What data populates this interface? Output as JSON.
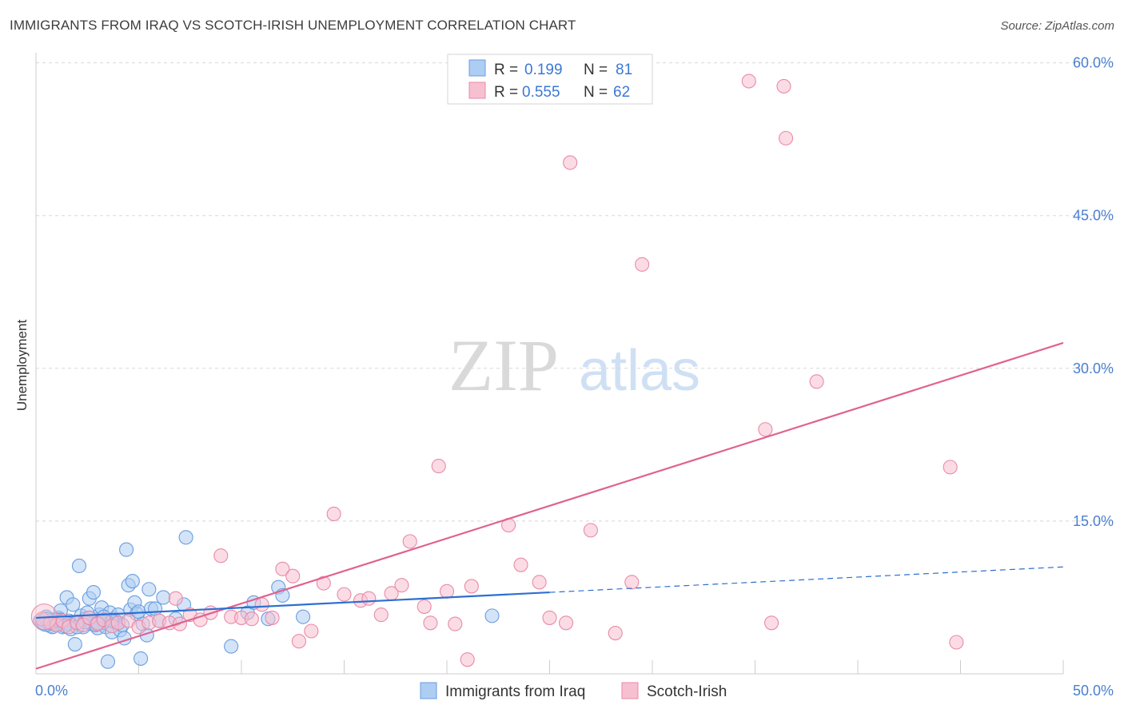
{
  "title": "IMMIGRANTS FROM IRAQ VS SCOTCH-IRISH UNEMPLOYMENT CORRELATION CHART",
  "source": "Source: ZipAtlas.com",
  "watermark": {
    "zip": "ZIP",
    "atlas": "atlas"
  },
  "colors": {
    "blue_fill": "#aecdf3",
    "blue_stroke": "#6a9de0",
    "blue_line": "#2e6fd0",
    "pink_fill": "#f7c0d0",
    "pink_stroke": "#e98aa8",
    "pink_line": "#e0628f",
    "grid": "#d8d8d8",
    "tick_text": "#4a7fd0"
  },
  "stats": [
    {
      "r_label": "R =",
      "r_value": "0.199",
      "n_label": "N =",
      "n_value": "81"
    },
    {
      "r_label": "R =",
      "r_value": "0.555",
      "n_label": "N =",
      "n_value": "62"
    }
  ],
  "chart_data": {
    "type": "scatter",
    "title": "IMMIGRANTS FROM IRAQ VS SCOTCH-IRISH UNEMPLOYMENT CORRELATION CHART",
    "xlabel": "",
    "ylabel": "Unemployment",
    "xlim": [
      0,
      50
    ],
    "ylim": [
      0,
      62
    ],
    "x_tick_labels": [
      "0.0%",
      "50.0%"
    ],
    "y_ticks": [
      15,
      30,
      45,
      60
    ],
    "y_tick_labels": [
      "15.0%",
      "30.0%",
      "45.0%",
      "60.0%"
    ],
    "grid": true,
    "legend_position": "bottom-center",
    "series": [
      {
        "name": "Immigrants from Iraq",
        "color": "blue",
        "r": 0.199,
        "n": 81,
        "trend": {
          "x": [
            0,
            25
          ],
          "y": [
            5.5,
            8.0
          ],
          "dashed_to": [
            50,
            10.5
          ]
        },
        "points": [
          [
            0.2,
            5.2
          ],
          [
            0.4,
            4.9
          ],
          [
            0.5,
            5.6
          ],
          [
            0.6,
            5.0
          ],
          [
            0.7,
            4.7
          ],
          [
            0.8,
            5.3
          ],
          [
            0.9,
            5.1
          ],
          [
            1.0,
            4.8
          ],
          [
            1.1,
            5.5
          ],
          [
            1.2,
            6.2
          ],
          [
            1.3,
            4.6
          ],
          [
            1.4,
            5.0
          ],
          [
            1.5,
            7.5
          ],
          [
            1.6,
            5.2
          ],
          [
            1.7,
            4.4
          ],
          [
            1.8,
            6.8
          ],
          [
            1.9,
            2.9
          ],
          [
            2.0,
            5.1
          ],
          [
            2.1,
            10.6
          ],
          [
            2.2,
            5.7
          ],
          [
            2.3,
            4.6
          ],
          [
            2.4,
            5.4
          ],
          [
            2.5,
            6.0
          ],
          [
            2.6,
            7.4
          ],
          [
            2.7,
            4.9
          ],
          [
            2.8,
            8.0
          ],
          [
            2.9,
            5.3
          ],
          [
            3.0,
            4.5
          ],
          [
            3.1,
            5.8
          ],
          [
            3.2,
            6.5
          ],
          [
            3.3,
            5.0
          ],
          [
            3.4,
            4.6
          ],
          [
            3.5,
            1.2
          ],
          [
            3.6,
            6.0
          ],
          [
            3.7,
            4.1
          ],
          [
            3.8,
            5.4
          ],
          [
            3.9,
            5.1
          ],
          [
            4.0,
            5.8
          ],
          [
            4.1,
            4.3
          ],
          [
            4.2,
            4.8
          ],
          [
            4.3,
            3.5
          ],
          [
            4.4,
            12.2
          ],
          [
            4.5,
            8.7
          ],
          [
            4.6,
            6.3
          ],
          [
            4.7,
            9.1
          ],
          [
            4.8,
            7.0
          ],
          [
            4.9,
            5.9
          ],
          [
            5.0,
            6.1
          ],
          [
            5.1,
            1.5
          ],
          [
            5.2,
            4.9
          ],
          [
            5.4,
            3.8
          ],
          [
            5.5,
            8.3
          ],
          [
            5.6,
            6.4
          ],
          [
            5.8,
            6.4
          ],
          [
            6.0,
            5.2
          ],
          [
            6.2,
            7.5
          ],
          [
            6.8,
            5.4
          ],
          [
            7.2,
            6.8
          ],
          [
            7.3,
            13.4
          ],
          [
            9.5,
            2.7
          ],
          [
            10.3,
            6.0
          ],
          [
            10.6,
            7.0
          ],
          [
            11.3,
            5.4
          ],
          [
            11.8,
            8.5
          ],
          [
            12.0,
            7.7
          ],
          [
            13.0,
            5.6
          ],
          [
            22.2,
            5.7
          ],
          [
            0.3,
            5.0
          ],
          [
            0.8,
            4.6
          ],
          [
            1.2,
            5.3
          ],
          [
            1.6,
            4.9
          ],
          [
            2.0,
            4.6
          ],
          [
            2.4,
            5.1
          ],
          [
            2.9,
            4.8
          ],
          [
            3.3,
            5.6
          ],
          [
            3.7,
            5.2
          ],
          [
            0.5,
            5.4
          ],
          [
            1.0,
            5.3
          ],
          [
            1.4,
            4.7
          ],
          [
            2.6,
            5.5
          ],
          [
            3.0,
            5.0
          ]
        ]
      },
      {
        "name": "Scotch-Irish",
        "color": "pink",
        "r": 0.555,
        "n": 62,
        "trend": {
          "x": [
            0,
            50
          ],
          "y": [
            0.5,
            32.5
          ]
        },
        "points": [
          [
            0.3,
            5.4
          ],
          [
            0.7,
            5.0
          ],
          [
            1.0,
            4.8
          ],
          [
            1.3,
            5.2
          ],
          [
            1.6,
            4.6
          ],
          [
            2.0,
            5.0
          ],
          [
            2.3,
            4.8
          ],
          [
            2.6,
            5.5
          ],
          [
            3.0,
            4.9
          ],
          [
            3.3,
            5.3
          ],
          [
            3.7,
            4.7
          ],
          [
            4.0,
            5.0
          ],
          [
            4.5,
            5.2
          ],
          [
            5.0,
            4.6
          ],
          [
            5.5,
            5.0
          ],
          [
            6.0,
            5.2
          ],
          [
            6.5,
            5.0
          ],
          [
            6.8,
            7.4
          ],
          [
            7.0,
            4.9
          ],
          [
            7.5,
            5.8
          ],
          [
            8.0,
            5.3
          ],
          [
            8.5,
            6.0
          ],
          [
            9.0,
            11.6
          ],
          [
            9.5,
            5.6
          ],
          [
            10.0,
            5.5
          ],
          [
            10.5,
            5.4
          ],
          [
            11.0,
            6.8
          ],
          [
            11.5,
            5.5
          ],
          [
            12.0,
            10.3
          ],
          [
            12.5,
            9.6
          ],
          [
            12.8,
            3.2
          ],
          [
            13.4,
            4.2
          ],
          [
            14.0,
            8.9
          ],
          [
            14.5,
            15.7
          ],
          [
            15.0,
            7.8
          ],
          [
            15.8,
            7.2
          ],
          [
            16.2,
            7.4
          ],
          [
            16.8,
            5.8
          ],
          [
            17.3,
            7.9
          ],
          [
            17.8,
            8.7
          ],
          [
            18.2,
            13.0
          ],
          [
            18.9,
            6.6
          ],
          [
            19.2,
            5.0
          ],
          [
            19.6,
            20.4
          ],
          [
            20.0,
            8.1
          ],
          [
            20.4,
            4.9
          ],
          [
            21.0,
            1.4
          ],
          [
            21.2,
            8.6
          ],
          [
            23.0,
            14.6
          ],
          [
            23.6,
            10.7
          ],
          [
            24.5,
            9.0
          ],
          [
            25.0,
            5.5
          ],
          [
            25.8,
            5.0
          ],
          [
            26.0,
            50.2
          ],
          [
            27.0,
            14.1
          ],
          [
            28.2,
            4.0
          ],
          [
            29.0,
            9.0
          ],
          [
            29.5,
            40.2
          ],
          [
            34.7,
            58.2
          ],
          [
            35.5,
            24.0
          ],
          [
            35.8,
            5.0
          ],
          [
            36.4,
            57.7
          ]
        ],
        "extra_points": [
          [
            36.5,
            52.6
          ],
          [
            38.0,
            28.7
          ],
          [
            44.5,
            20.3
          ],
          [
            44.8,
            3.1
          ]
        ]
      }
    ]
  },
  "legend": [
    {
      "label": "Immigrants from Iraq",
      "color": "blue"
    },
    {
      "label": "Scotch-Irish",
      "color": "pink"
    }
  ]
}
